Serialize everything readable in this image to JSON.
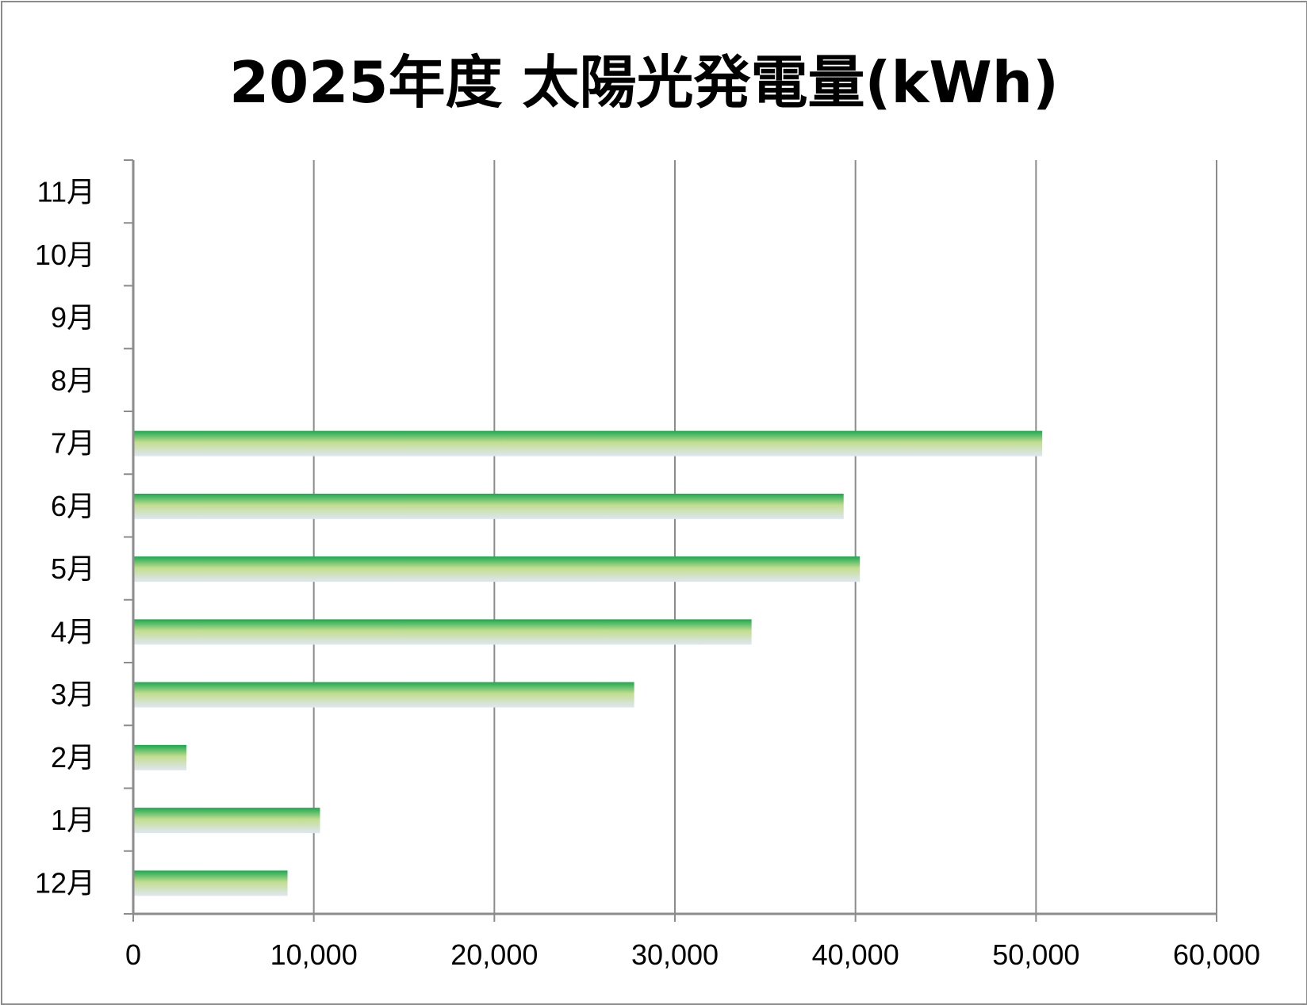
{
  "chart_data": {
    "type": "bar",
    "orientation": "horizontal",
    "title": "2025年度 太陽光発電量(kWh)",
    "xlabel": "",
    "ylabel": "",
    "categories": [
      "12月",
      "1月",
      "2月",
      "3月",
      "4月",
      "5月",
      "6月",
      "7月",
      "8月",
      "9月",
      "10月",
      "11月"
    ],
    "values": [
      8500,
      10300,
      2900,
      27700,
      34200,
      40200,
      39300,
      50300,
      null,
      null,
      null,
      null
    ],
    "xlim": [
      0,
      60000
    ],
    "xticks": [
      0,
      10000,
      20000,
      30000,
      40000,
      50000,
      60000
    ],
    "xtick_labels": [
      "0",
      "10,000",
      "20,000",
      "30,000",
      "40,000",
      "50,000",
      "60,000"
    ],
    "grid": "vertical major gridlines",
    "legend": "none",
    "colors": {
      "bar_top": "#1aa84f",
      "bar_mid": "#c2dd8f",
      "bar_bottom": "#dfe6f2",
      "gridline": "#8c8c8c",
      "frame": "#8c8c8c"
    }
  }
}
